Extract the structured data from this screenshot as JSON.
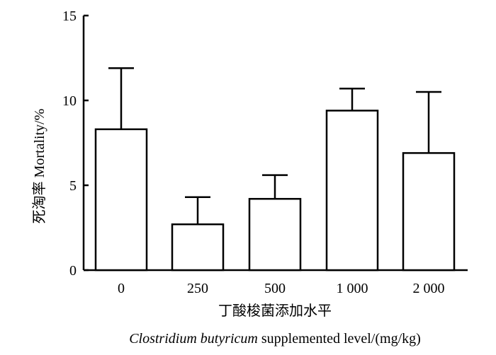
{
  "chart_data": {
    "type": "bar",
    "categories": [
      "0",
      "250",
      "500",
      "1 000",
      "2 000"
    ],
    "values": [
      8.3,
      2.7,
      4.2,
      9.4,
      6.9
    ],
    "error_upper": [
      11.9,
      4.3,
      5.6,
      10.7,
      10.5
    ],
    "ylim": [
      0,
      15
    ],
    "yticks": [
      "0",
      "5",
      "10",
      "15"
    ],
    "ylabel_cn": "死淘率",
    "ylabel_en": "Mortality/%",
    "xlabel_cn": "丁酸梭菌添加水平",
    "xlabel_en_italic": "Clostridium butyricum",
    "xlabel_en_rest": " supplemented level/(mg/kg)",
    "grid": false,
    "bar_color": "#ffffff",
    "stroke_color": "#000000"
  }
}
